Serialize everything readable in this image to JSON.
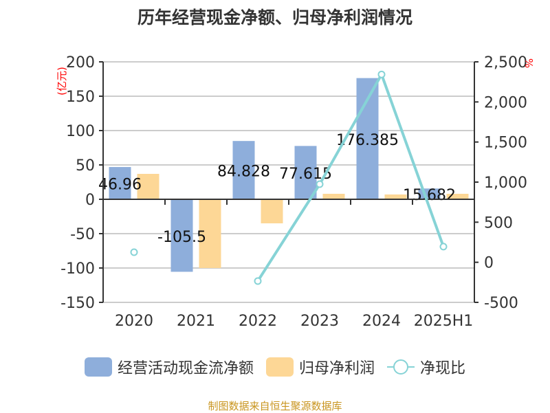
{
  "chart_data": {
    "type": "bar",
    "title": "历年经营现金净额、归母净利润情况",
    "categories": [
      "2020",
      "2021",
      "2022",
      "2023",
      "2024",
      "2025H1"
    ],
    "left_axis": {
      "label": "(亿元)",
      "ylim": [
        -150,
        200
      ],
      "ticks": [
        "200",
        "150",
        "100",
        "50",
        "0",
        "-50",
        "-100",
        "-150"
      ]
    },
    "right_axis": {
      "label": "%",
      "ylim": [
        -500,
        2500
      ],
      "ticks": [
        "2,500",
        "2,000",
        "1,500",
        "1,000",
        "500",
        "0",
        "-500"
      ]
    },
    "series": [
      {
        "name": "经营活动现金流净额",
        "type": "bar",
        "axis": "left",
        "color": "#8eaedb",
        "values": [
          46.96,
          -105.5,
          84.828,
          77.615,
          176.385,
          15.682
        ],
        "labels": [
          "46.96",
          "-105.5",
          "84.828",
          "77.615",
          "176.385",
          "15.682"
        ]
      },
      {
        "name": "归母净利润",
        "type": "bar",
        "axis": "left",
        "color": "#fdd796",
        "values": [
          37,
          -100,
          -35,
          8,
          7,
          8
        ]
      },
      {
        "name": "净现比",
        "type": "line",
        "axis": "right",
        "color": "#86d3d6",
        "values": [
          126,
          null,
          -234,
          974,
          2343,
          195
        ]
      }
    ],
    "grid": true,
    "legend": "bottom"
  },
  "source": "制图数据来自恒生聚源数据库"
}
